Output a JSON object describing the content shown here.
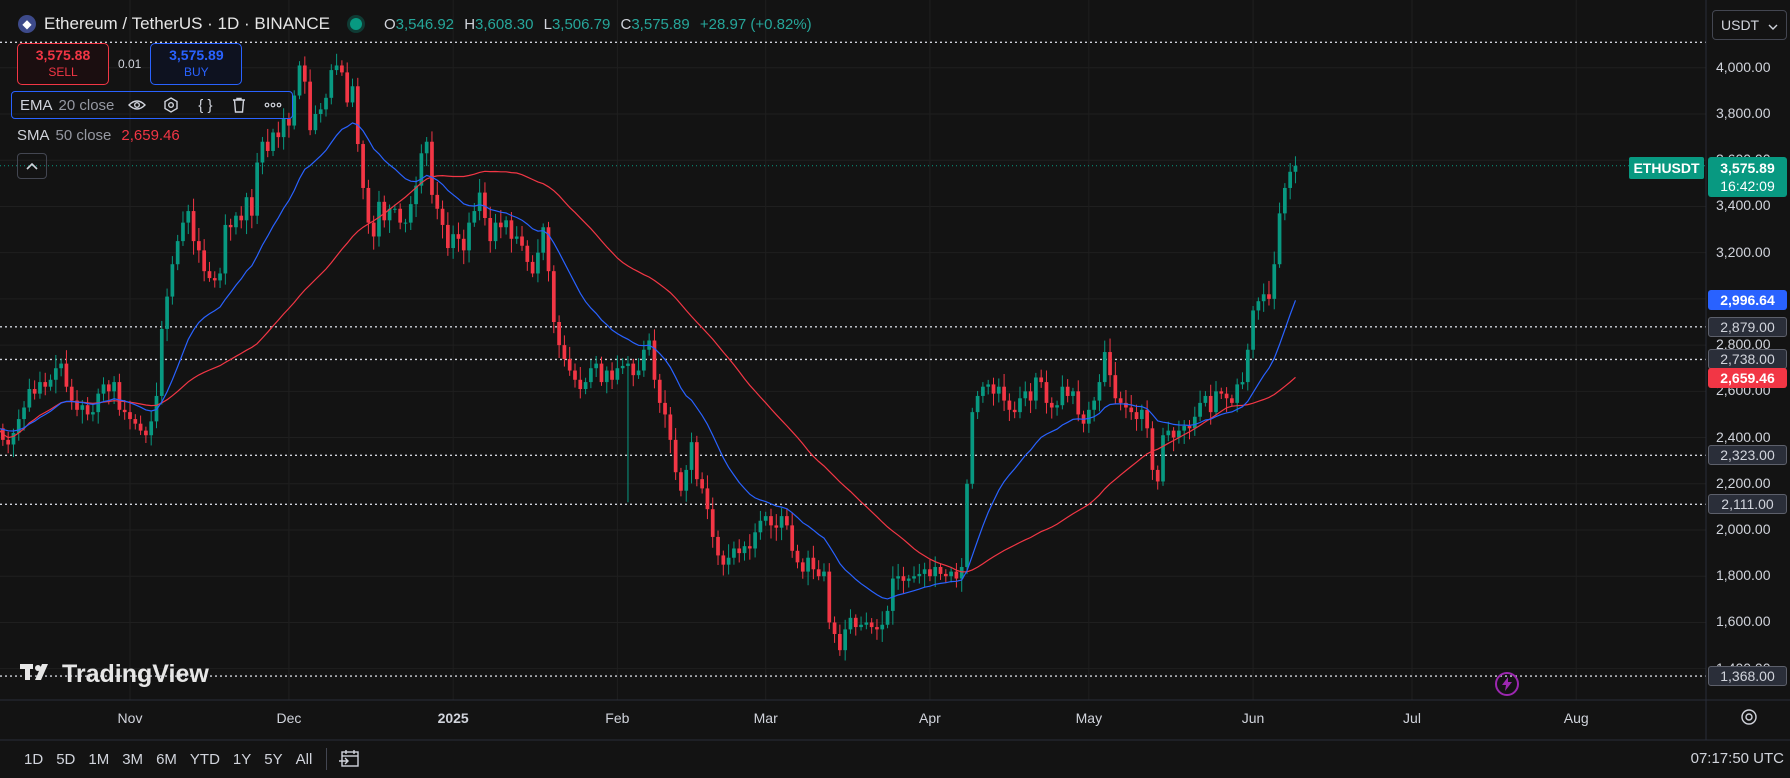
{
  "header": {
    "symbol_title": "Ethereum / TetherUS · 1D · BINANCE",
    "logo_icon": "ethereum-logo-icon",
    "status_icon": "market-open-dot-icon",
    "ohlc": {
      "o_label": "O",
      "o": "3,546.92",
      "h_label": "H",
      "h": "3,608.30",
      "l_label": "L",
      "l": "3,506.79",
      "c_label": "C",
      "c": "3,575.89",
      "change": "+28.97 (+0.82%)"
    }
  },
  "trade": {
    "sell_price": "3,575.88",
    "sell_label": "SELL",
    "quantity": "0.01",
    "buy_price": "3,575.89",
    "buy_label": "BUY"
  },
  "indicators": {
    "ema": {
      "name": "EMA",
      "params": "20 close",
      "icons": [
        "eye-icon",
        "settings-icon",
        "source-code-icon",
        "trash-icon",
        "more-icon"
      ]
    },
    "sma": {
      "name": "SMA",
      "params": "50 close",
      "value": "2,659.46"
    },
    "collapse_icon": "chevron-up-icon"
  },
  "currency_select": {
    "value": "USDT",
    "icon": "chevron-down-icon"
  },
  "watermark": "TradingView",
  "ticker_label": "ETHUSDT",
  "last_price": {
    "price": "3,575.89",
    "countdown": "16:42:09"
  },
  "price_labels": [
    {
      "text": "2,996.64",
      "style": "blue",
      "price": 2996.64
    },
    {
      "text": "2,879.00",
      "style": "grey",
      "price": 2879
    },
    {
      "text": "2,738.00",
      "style": "grey",
      "price": 2738
    },
    {
      "text": "2,659.46",
      "style": "red",
      "price": 2659.46
    },
    {
      "text": "2,323.00",
      "style": "grey",
      "price": 2323
    },
    {
      "text": "2,111.00",
      "style": "grey",
      "price": 2111
    },
    {
      "text": "1,368.00",
      "style": "grey",
      "price": 1368
    }
  ],
  "bottom": {
    "ranges": [
      "1D",
      "5D",
      "1M",
      "3M",
      "6M",
      "YTD",
      "1Y",
      "5Y",
      "All"
    ],
    "calendar_icon": "calendar-goto-icon",
    "clock": "07:17:50 UTC",
    "settings_icon": "gear-icon",
    "alert_icon": "lightning-bolt-icon"
  },
  "chart_data": {
    "type": "candlestick",
    "title": "Ethereum / TetherUS · 1D · BINANCE",
    "ylim": [
      1320,
      4150
    ],
    "yticks": [
      1400,
      1600,
      1800,
      2000,
      2200,
      2400,
      2600,
      2800,
      3000,
      3200,
      3400,
      3600,
      3800,
      4000
    ],
    "ytick_labels": [
      "1,400.00",
      "1,600.00",
      "1,800.00",
      "2,000.00",
      "2,200.00",
      "2,400.00",
      "2,600.00",
      "2,800.00",
      "3,000.00",
      "3,200.00",
      "3,400.00",
      "3,600.00",
      "3,800.00",
      "4,000.00"
    ],
    "x_axis": {
      "start": "2024-10-07",
      "end": "2025-08-31"
    },
    "xticks": [
      {
        "label": "Nov",
        "date": "2024-11-01",
        "bold": false
      },
      {
        "label": "Dec",
        "date": "2024-12-01",
        "bold": false
      },
      {
        "label": "2025",
        "date": "2025-01-01",
        "bold": true
      },
      {
        "label": "Feb",
        "date": "2025-02-01",
        "bold": false
      },
      {
        "label": "Mar",
        "date": "2025-03-01",
        "bold": false
      },
      {
        "label": "Apr",
        "date": "2025-04-01",
        "bold": false
      },
      {
        "label": "May",
        "date": "2025-05-01",
        "bold": false
      },
      {
        "label": "Jun",
        "date": "2025-06-01",
        "bold": false
      },
      {
        "label": "Jul",
        "date": "2025-07-01",
        "bold": false
      },
      {
        "label": "Aug",
        "date": "2025-08-01",
        "bold": false
      }
    ],
    "horizontal_lines": [
      4110,
      2879,
      2738,
      2323,
      2111,
      1368
    ],
    "last_price": 3575.89,
    "up_color": "#089981",
    "down_color": "#f23645",
    "series": [
      {
        "name": "ETHUSDT",
        "kind": "candles",
        "start_date": "2024-10-07",
        "close": [
          2440,
          2390,
          2370,
          2420,
          2480,
          2530,
          2610,
          2590,
          2640,
          2620,
          2650,
          2700,
          2720,
          2620,
          2560,
          2520,
          2540,
          2500,
          2510,
          2590,
          2630,
          2600,
          2640,
          2520,
          2510,
          2480,
          2460,
          2430,
          2410,
          2470,
          2580,
          2870,
          3010,
          3150,
          3250,
          3330,
          3380,
          3250,
          3210,
          3120,
          3090,
          3080,
          3110,
          3320,
          3310,
          3360,
          3340,
          3440,
          3360,
          3590,
          3680,
          3640,
          3720,
          3700,
          3780,
          3750,
          3880,
          4010,
          3940,
          3730,
          3800,
          3820,
          3870,
          3990,
          4010,
          3980,
          3850,
          3920,
          3670,
          3480,
          3330,
          3270,
          3420,
          3340,
          3390,
          3390,
          3330,
          3330,
          3410,
          3490,
          3630,
          3680,
          3450,
          3390,
          3320,
          3220,
          3280,
          3260,
          3210,
          3330,
          3380,
          3460,
          3350,
          3250,
          3330,
          3310,
          3340,
          3260,
          3270,
          3230,
          3160,
          3110,
          3200,
          3310,
          3120,
          2900,
          2800,
          2740,
          2690,
          2650,
          2610,
          2640,
          2700,
          2720,
          2640,
          2690,
          2650,
          2700,
          2710,
          2720,
          2670,
          2690,
          2780,
          2820,
          2650,
          2550,
          2500,
          2390,
          2250,
          2170,
          2260,
          2380,
          2220,
          2180,
          2090,
          1970,
          1890,
          1850,
          1880,
          1920,
          1900,
          1930,
          1920,
          1990,
          2040,
          2060,
          2020,
          2010,
          2060,
          2020,
          1910,
          1860,
          1820,
          1880,
          1830,
          1800,
          1820,
          1600,
          1550,
          1480,
          1570,
          1620,
          1580,
          1590,
          1600,
          1580,
          1570,
          1590,
          1650,
          1790,
          1800,
          1780,
          1790,
          1800,
          1810,
          1830,
          1800,
          1840,
          1810,
          1800,
          1820,
          1790,
          1840,
          2200,
          2510,
          2580,
          2620,
          2630,
          2590,
          2620,
          2560,
          2520,
          2510,
          2570,
          2600,
          2560,
          2660,
          2640,
          2550,
          2530,
          2540,
          2620,
          2580,
          2600,
          2500,
          2460,
          2520,
          2560,
          2640,
          2770,
          2670,
          2570,
          2550,
          2530,
          2510,
          2480,
          2520,
          2440,
          2260,
          2210,
          2410,
          2430,
          2400,
          2430,
          2450,
          2440,
          2490,
          2550,
          2580,
          2510,
          2600,
          2590,
          2570,
          2550,
          2630,
          2640,
          2780,
          2950,
          2990,
          3020,
          3000,
          3150,
          3370,
          3480,
          3550,
          3575.89
        ],
        "low_outliers": [
          {
            "date": "2025-02-03",
            "low": 2120
          }
        ]
      },
      {
        "name": "EMA 20 close",
        "kind": "ema",
        "period": 20,
        "color": "#2962ff"
      },
      {
        "name": "SMA 50 close",
        "kind": "sma",
        "period": 50,
        "color": "#f23645"
      }
    ]
  }
}
